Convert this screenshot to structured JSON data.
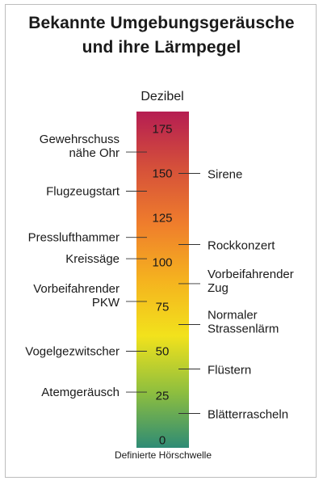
{
  "chart_data": {
    "type": "bar",
    "title_lines": [
      "Bekannte Umgebungsgeräusche",
      "und ihre Lärmpegel"
    ],
    "unit_label": "Dezibel",
    "footer": "Definierte Hörschwelle",
    "ylim": [
      0,
      185
    ],
    "ticks": [
      "175",
      "150",
      "125",
      "100",
      "75",
      "50",
      "25",
      "0"
    ],
    "tick_values": [
      175,
      150,
      125,
      100,
      75,
      50,
      25,
      0
    ],
    "gradient_colors": [
      "#2e8b75",
      "#8fbf3e",
      "#f2e21c",
      "#f5b21f",
      "#ef7d2c",
      "#d5503a",
      "#b51d52"
    ],
    "left_labels": [
      {
        "lines": [
          "Gewehrschuss",
          "nähe Ohr"
        ],
        "value": 162
      },
      {
        "lines": [
          "Flugzeugstart"
        ],
        "value": 140
      },
      {
        "lines": [
          "Presslufthammer"
        ],
        "value": 114
      },
      {
        "lines": [
          "Kreissäge"
        ],
        "value": 102
      },
      {
        "lines": [
          "Vorbeifahrender",
          "PKW"
        ],
        "value": 78
      },
      {
        "lines": [
          "Vogelgezwitscher"
        ],
        "value": 50
      },
      {
        "lines": [
          "Atemgeräusch"
        ],
        "value": 27
      }
    ],
    "right_labels": [
      {
        "lines": [
          "Sirene"
        ],
        "value": 150
      },
      {
        "lines": [
          "Rockkonzert"
        ],
        "value": 110
      },
      {
        "lines": [
          "Vorbeifahrender",
          "Zug"
        ],
        "value": 88
      },
      {
        "lines": [
          "Normaler",
          "Strassenlärm"
        ],
        "value": 65
      },
      {
        "lines": [
          "Flüstern"
        ],
        "value": 40
      },
      {
        "lines": [
          "Blätterrascheln"
        ],
        "value": 15
      }
    ]
  }
}
